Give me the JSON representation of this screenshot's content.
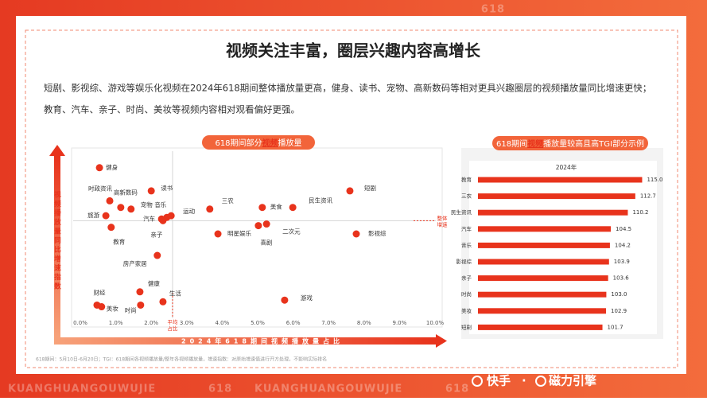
{
  "header": {
    "title": "视频关注丰富，圈层兴趣内容高增长",
    "description": [
      "短剧、影视综、游戏等娱乐化视频在2024年618期间整体播放量更高，健身、读书、宠物、高新数码等相对更具兴趣圈层的视频播放量同比增速更快；",
      "教育、汽车、亲子、时尚、美妆等视频内容相对观看偏好更强。"
    ]
  },
  "chart_data": [
    {
      "type": "scatter",
      "title_parts": [
        "618期间部分",
        "视频",
        "播放量"
      ],
      "xlabel": "2024年618期间视频播放量占比",
      "ylabel": "视频播放量同比增速指数",
      "xlim": [
        0,
        10
      ],
      "xticks": [
        {
          "value": 0,
          "label": "0.0%"
        },
        {
          "value": 1,
          "label": "1.0%"
        },
        {
          "value": 2,
          "label": "2.0%"
        },
        {
          "value": 3,
          "label": "3.0%"
        },
        {
          "value": 4,
          "label": "4.0%"
        },
        {
          "value": 5,
          "label": "5.0%"
        },
        {
          "value": 6,
          "label": "6.0%"
        },
        {
          "value": 7,
          "label": "7.0%"
        },
        {
          "value": 8,
          "label": "8.0%"
        },
        {
          "value": 9,
          "label": "9.0%"
        },
        {
          "value": 10,
          "label": "10.0%"
        }
      ],
      "ylim": [
        0,
        100
      ],
      "reference": {
        "x": 2.6,
        "x_label": [
          "平均",
          "占比"
        ],
        "y": 58,
        "y_label": [
          "整体",
          "增速"
        ]
      },
      "color": "#e8331c",
      "labels": [
        "健身",
        "时政资讯",
        "高新数码",
        "读书",
        "宠物",
        "音乐",
        "汽车",
        "运动",
        "亲子",
        "旅游",
        "教育",
        "房产家居",
        "健康",
        "财经",
        "美妆",
        "时尚",
        "生活",
        "游戏",
        "三农",
        "美食",
        "民生资讯",
        "短剧",
        "二次元",
        "明星娱乐",
        "喜剧",
        "影视综"
      ],
      "x": [
        0.54,
        0.83,
        1.14,
        2.0,
        1.43,
        2.44,
        2.29,
        2.56,
        2.33,
        0.72,
        0.87,
        2.17,
        1.68,
        0.47,
        0.6,
        1.7,
        2.33,
        5.76,
        3.65,
        5.13,
        5.99,
        7.6,
        5.25,
        3.88,
        5.02,
        7.78
      ],
      "y": [
        90,
        70,
        66,
        76,
        65,
        60,
        59,
        61,
        58,
        61,
        54,
        37,
        15,
        7,
        6,
        7,
        9,
        10,
        65,
        66,
        66,
        76,
        56,
        50,
        55,
        50
      ]
    },
    {
      "type": "bar",
      "orientation": "horizontal",
      "title_parts": [
        "618期间",
        "视频",
        "播放量较高且高TGI部分示例"
      ],
      "subtitle": "2024年",
      "color": "#e8331c",
      "xlim": [
        60,
        125
      ],
      "categories": [
        "教育",
        "三农",
        "民生资讯",
        "汽车",
        "音乐",
        "影视综",
        "亲子",
        "时尚",
        "美妆",
        "短剧"
      ],
      "values": [
        115.0,
        112.7,
        110.2,
        104.5,
        104.2,
        103.9,
        103.6,
        103.0,
        102.9,
        101.7
      ],
      "value_labels": [
        "115.0",
        "112.7",
        "110.2",
        "104.5",
        "104.2",
        "103.9",
        "103.6",
        "103.0",
        "102.9",
        "101.7"
      ]
    }
  ],
  "footnote": "618期间：5月10日-6月20日；TGI：618期间各视频播放量/整年各视频播放量，增速指数：对原始增速值进行开方处理，不影响实际排名",
  "brand": {
    "kuaishou": "快手",
    "separator": "·",
    "cili": "磁力引擎"
  },
  "watermark": [
    "618",
    "KUANGHUANGOUWUJIE",
    "618",
    "KUANGHUANGOUWUJIE",
    "618"
  ]
}
